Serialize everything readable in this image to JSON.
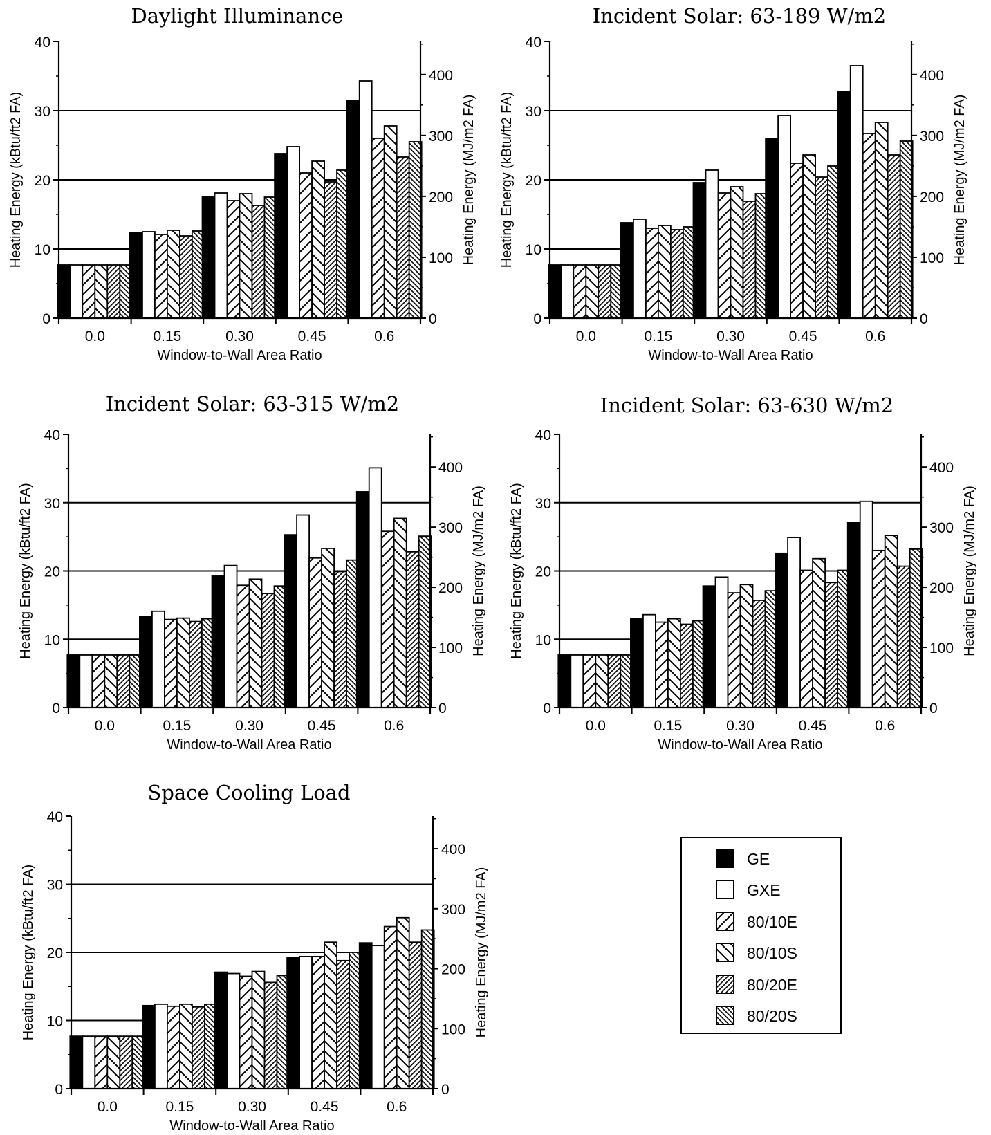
{
  "chart_data": [
    {
      "type": "bar",
      "title": "Daylight Illuminance",
      "xlabel": "Window-to-Wall Area Ratio",
      "ylabel": "Heating Energy (kBtu/ft2 FA)",
      "ylabel_right": "Heating Energy (MJ/m2 FA)",
      "categories": [
        "0.0",
        "0.15",
        "0.30",
        "0.45",
        "0.6"
      ],
      "ylim": [
        0,
        40
      ],
      "yticks": [
        "0",
        "10",
        "20",
        "30",
        "40"
      ],
      "yticks_right": [
        "0",
        "100",
        "200",
        "300",
        "400"
      ],
      "series": [
        {
          "name": "GE",
          "values": [
            7.7,
            12.4,
            17.6,
            23.8,
            31.5
          ]
        },
        {
          "name": "GXE",
          "values": [
            7.7,
            12.5,
            18.1,
            24.8,
            34.3
          ]
        },
        {
          "name": "80/10E",
          "values": [
            7.7,
            12.1,
            17.0,
            21.0,
            26.0
          ]
        },
        {
          "name": "80/10S",
          "values": [
            7.7,
            12.7,
            18.0,
            22.7,
            27.8
          ]
        },
        {
          "name": "80/20E",
          "values": [
            7.7,
            11.9,
            16.3,
            19.7,
            23.3
          ]
        },
        {
          "name": "80/20S",
          "values": [
            7.7,
            12.6,
            17.5,
            21.4,
            25.5
          ]
        }
      ]
    },
    {
      "type": "bar",
      "title": "Incident Solar: 63-189 W/m2",
      "xlabel": "Window-to-Wall Area Ratio",
      "ylabel": "Heating Energy (kBtu/ft2 FA)",
      "ylabel_right": "Heating Energy (MJ/m2 FA)",
      "categories": [
        "0.0",
        "0.15",
        "0.30",
        "0.45",
        "0.6"
      ],
      "ylim": [
        0,
        40
      ],
      "yticks": [
        "0",
        "10",
        "20",
        "30",
        "40"
      ],
      "yticks_right": [
        "0",
        "100",
        "200",
        "300",
        "400"
      ],
      "series": [
        {
          "name": "GE",
          "values": [
            7.7,
            13.8,
            19.6,
            26.0,
            32.8
          ]
        },
        {
          "name": "GXE",
          "values": [
            7.7,
            14.3,
            21.4,
            29.3,
            36.5
          ]
        },
        {
          "name": "80/10E",
          "values": [
            7.7,
            13.0,
            18.1,
            22.4,
            26.7
          ]
        },
        {
          "name": "80/10S",
          "values": [
            7.7,
            13.4,
            19.0,
            23.6,
            28.3
          ]
        },
        {
          "name": "80/20E",
          "values": [
            7.7,
            12.8,
            16.9,
            20.4,
            23.6
          ]
        },
        {
          "name": "80/20S",
          "values": [
            7.7,
            13.2,
            18.0,
            22.0,
            25.6
          ]
        }
      ]
    },
    {
      "type": "bar",
      "title": "Incident Solar: 63-315 W/m2",
      "xlabel": "Window-to-Wall Area Ratio",
      "ylabel": "Heating Energy (kBtu/ft2 FA)",
      "ylabel_right": "Heating Energy (MJ/m2 FA)",
      "categories": [
        "0.0",
        "0.15",
        "0.30",
        "0.45",
        "0.6"
      ],
      "ylim": [
        0,
        40
      ],
      "yticks": [
        "0",
        "10",
        "20",
        "30",
        "40"
      ],
      "yticks_right": [
        "0",
        "100",
        "200",
        "300",
        "400"
      ],
      "series": [
        {
          "name": "GE",
          "values": [
            7.7,
            13.3,
            19.3,
            25.3,
            31.6
          ]
        },
        {
          "name": "GXE",
          "values": [
            7.7,
            14.1,
            20.8,
            28.2,
            35.1
          ]
        },
        {
          "name": "80/10E",
          "values": [
            7.7,
            12.9,
            17.9,
            21.9,
            25.8
          ]
        },
        {
          "name": "80/10S",
          "values": [
            7.7,
            13.1,
            18.8,
            23.3,
            27.7
          ]
        },
        {
          "name": "80/20E",
          "values": [
            7.7,
            12.6,
            16.7,
            19.9,
            22.8
          ]
        },
        {
          "name": "80/20S",
          "values": [
            7.7,
            13.0,
            17.8,
            21.6,
            25.1
          ]
        }
      ]
    },
    {
      "type": "bar",
      "title": "Incident Solar: 63-630 W/m2",
      "xlabel": "Window-to-Wall Area Ratio",
      "ylabel": "Heating Energy (kBtu/ft2 FA)",
      "ylabel_right": "Heating Energy (MJ/m2 FA)",
      "categories": [
        "0.0",
        "0.15",
        "0.30",
        "0.45",
        "0.6"
      ],
      "ylim": [
        0,
        40
      ],
      "yticks": [
        "0",
        "10",
        "20",
        "30",
        "40"
      ],
      "yticks_right": [
        "0",
        "100",
        "200",
        "300",
        "400"
      ],
      "series": [
        {
          "name": "GE",
          "values": [
            7.7,
            13.0,
            17.8,
            22.6,
            27.1
          ]
        },
        {
          "name": "GXE",
          "values": [
            7.7,
            13.6,
            19.1,
            24.9,
            30.2
          ]
        },
        {
          "name": "80/10E",
          "values": [
            7.7,
            12.5,
            16.8,
            20.1,
            23.0
          ]
        },
        {
          "name": "80/10S",
          "values": [
            7.7,
            13.0,
            18.0,
            21.8,
            25.2
          ]
        },
        {
          "name": "80/20E",
          "values": [
            7.7,
            12.2,
            15.7,
            18.3,
            20.7
          ]
        },
        {
          "name": "80/20S",
          "values": [
            7.7,
            12.7,
            17.1,
            20.1,
            23.2
          ]
        }
      ]
    },
    {
      "type": "bar",
      "title": "Space Cooling Load",
      "xlabel": "Window-to-Wall Area Ratio",
      "ylabel": "Heating Energy (kBtu/ft2 FA)",
      "ylabel_right": "Heating Energy (MJ/m2 FA)",
      "categories": [
        "0.0",
        "0.15",
        "0.30",
        "0.45",
        "0.6"
      ],
      "ylim": [
        0,
        40
      ],
      "yticks": [
        "0",
        "10",
        "20",
        "30",
        "40"
      ],
      "yticks_right": [
        "0",
        "100",
        "200",
        "300",
        "400"
      ],
      "series": [
        {
          "name": "GE",
          "values": [
            7.7,
            12.2,
            17.1,
            19.2,
            21.4
          ]
        },
        {
          "name": "GXE",
          "values": [
            7.7,
            12.4,
            16.9,
            19.4,
            21.0
          ]
        },
        {
          "name": "80/10E",
          "values": [
            7.7,
            12.1,
            16.5,
            19.4,
            23.8
          ]
        },
        {
          "name": "80/10S",
          "values": [
            7.7,
            12.4,
            17.2,
            21.5,
            25.1
          ]
        },
        {
          "name": "80/20E",
          "values": [
            7.7,
            12.0,
            15.6,
            18.8,
            21.5
          ]
        },
        {
          "name": "80/20S",
          "values": [
            7.7,
            12.4,
            16.6,
            20.0,
            23.3
          ]
        }
      ]
    }
  ],
  "legend": {
    "items": [
      {
        "label": "GE",
        "pattern": "solid-black"
      },
      {
        "label": "GXE",
        "pattern": "white"
      },
      {
        "label": "80/10E",
        "pattern": "diagonal-forward"
      },
      {
        "label": "80/10S",
        "pattern": "diagonal-backward"
      },
      {
        "label": "80/20E",
        "pattern": "dense-diagonal-forward"
      },
      {
        "label": "80/20S",
        "pattern": "dense-diagonal-backward"
      }
    ]
  }
}
